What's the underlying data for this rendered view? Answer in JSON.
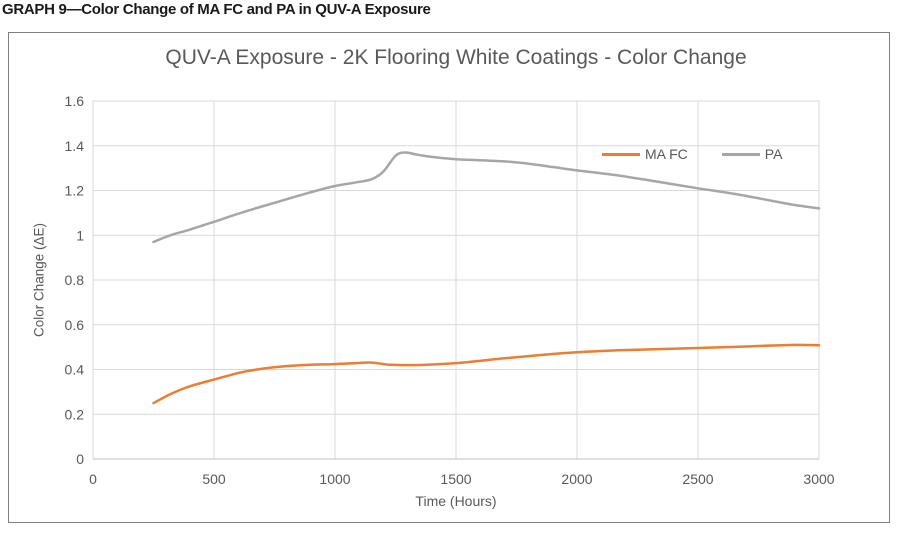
{
  "caption": "GRAPH 9—Color Change of MA FC and PA in QUV-A Exposure",
  "colors": {
    "mafc": "#ED7D31",
    "pa": "#A6A6A6",
    "text": "#595959",
    "gridline": "#D9D9D9",
    "axis_line": "#BFBFBF",
    "frame_border": "#808080",
    "caption_text": "#1A1A1A"
  },
  "chart_data": {
    "type": "line",
    "title": "QUV-A Exposure - 2K Flooring White Coatings - Color Change",
    "xlabel": "Time (Hours)",
    "ylabel": "Color Change (ΔE)",
    "xlim": [
      0,
      3000
    ],
    "ylim": [
      0,
      1.6
    ],
    "x_ticks": [
      "0",
      "500",
      "1000",
      "1500",
      "2000",
      "2500",
      "3000"
    ],
    "y_ticks": [
      "0",
      "0.2",
      "0.4",
      "0.6",
      "0.8",
      "1",
      "1.2",
      "1.4",
      "1.6"
    ],
    "grid": true,
    "legend_position": "top-right-inside",
    "series": [
      {
        "name": "MA FC",
        "color": "#ED7D31",
        "points": [
          [
            250,
            0.25
          ],
          [
            320,
            0.29
          ],
          [
            400,
            0.325
          ],
          [
            500,
            0.355
          ],
          [
            625,
            0.39
          ],
          [
            750,
            0.41
          ],
          [
            875,
            0.42
          ],
          [
            1000,
            0.424
          ],
          [
            1080,
            0.428
          ],
          [
            1150,
            0.431
          ],
          [
            1230,
            0.421
          ],
          [
            1350,
            0.42
          ],
          [
            1450,
            0.425
          ],
          [
            1550,
            0.433
          ],
          [
            1700,
            0.45
          ],
          [
            1850,
            0.465
          ],
          [
            2000,
            0.477
          ],
          [
            2150,
            0.485
          ],
          [
            2300,
            0.49
          ],
          [
            2500,
            0.496
          ],
          [
            2700,
            0.503
          ],
          [
            2900,
            0.51
          ],
          [
            3000,
            0.508
          ]
        ]
      },
      {
        "name": "PA",
        "color": "#A6A6A6",
        "points": [
          [
            250,
            0.97
          ],
          [
            320,
            1.0
          ],
          [
            400,
            1.025
          ],
          [
            500,
            1.06
          ],
          [
            625,
            1.105
          ],
          [
            750,
            1.145
          ],
          [
            875,
            1.185
          ],
          [
            1000,
            1.22
          ],
          [
            1080,
            1.235
          ],
          [
            1150,
            1.25
          ],
          [
            1200,
            1.285
          ],
          [
            1250,
            1.355
          ],
          [
            1290,
            1.37
          ],
          [
            1340,
            1.36
          ],
          [
            1400,
            1.35
          ],
          [
            1500,
            1.34
          ],
          [
            1600,
            1.335
          ],
          [
            1700,
            1.33
          ],
          [
            1800,
            1.32
          ],
          [
            1900,
            1.305
          ],
          [
            2000,
            1.29
          ],
          [
            2150,
            1.27
          ],
          [
            2300,
            1.245
          ],
          [
            2500,
            1.21
          ],
          [
            2650,
            1.185
          ],
          [
            2800,
            1.155
          ],
          [
            2900,
            1.135
          ],
          [
            3000,
            1.12
          ]
        ]
      }
    ]
  }
}
